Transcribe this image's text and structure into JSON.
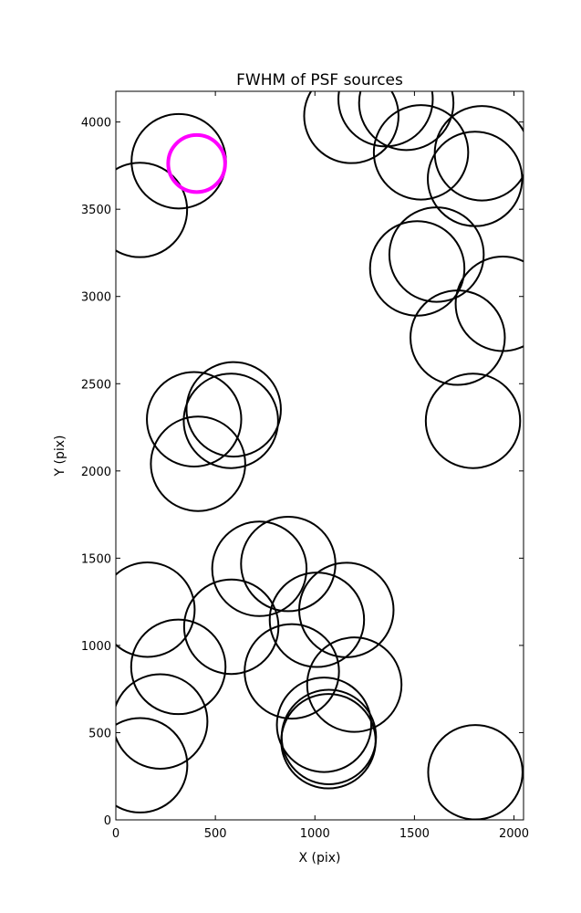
{
  "chart_data": {
    "type": "scatter",
    "title": "FWHM of PSF sources",
    "xlabel": "X (pix)",
    "ylabel": "Y (pix)",
    "xlim": [
      0,
      2048
    ],
    "ylim": [
      0,
      4176
    ],
    "xticks": [
      0,
      500,
      1000,
      1500,
      2000
    ],
    "yticks": [
      0,
      500,
      1000,
      1500,
      2000,
      2500,
      3000,
      3500,
      4000
    ],
    "xtick_labels": [
      "0",
      "500",
      "1000",
      "1500",
      "2000"
    ],
    "ytick_labels": [
      "0",
      "500",
      "1000",
      "1500",
      "2000",
      "2500",
      "3000",
      "3500",
      "4000"
    ],
    "grid": false,
    "marker": "open circle",
    "series": [
      {
        "color": "#000000",
        "points": [
          {
            "x": 122,
            "y": 313,
            "r": 237
          },
          {
            "x": 223,
            "y": 564,
            "r": 237
          },
          {
            "x": 314,
            "y": 877,
            "r": 237
          },
          {
            "x": 159,
            "y": 1205,
            "r": 237
          },
          {
            "x": 580,
            "y": 1107,
            "r": 237
          },
          {
            "x": 721,
            "y": 1439,
            "r": 237
          },
          {
            "x": 866,
            "y": 1467,
            "r": 237
          },
          {
            "x": 1010,
            "y": 1147,
            "r": 237
          },
          {
            "x": 1158,
            "y": 1203,
            "r": 237
          },
          {
            "x": 884,
            "y": 851,
            "r": 237
          },
          {
            "x": 1198,
            "y": 775,
            "r": 237
          },
          {
            "x": 1046,
            "y": 545,
            "r": 237
          },
          {
            "x": 1070,
            "y": 475,
            "r": 237
          },
          {
            "x": 1068,
            "y": 451,
            "r": 237
          },
          {
            "x": 1806,
            "y": 273,
            "r": 237
          },
          {
            "x": 413,
            "y": 2041,
            "r": 237
          },
          {
            "x": 393,
            "y": 2296,
            "r": 237
          },
          {
            "x": 578,
            "y": 2287,
            "r": 237
          },
          {
            "x": 592,
            "y": 2353,
            "r": 237
          },
          {
            "x": 1794,
            "y": 2287,
            "r": 237
          },
          {
            "x": 1717,
            "y": 2764,
            "r": 237
          },
          {
            "x": 1944,
            "y": 2958,
            "r": 237
          },
          {
            "x": 1514,
            "y": 3161,
            "r": 237
          },
          {
            "x": 1611,
            "y": 3240,
            "r": 237
          },
          {
            "x": 1804,
            "y": 3674,
            "r": 237
          },
          {
            "x": 1839,
            "y": 3821,
            "r": 237
          },
          {
            "x": 1533,
            "y": 3826,
            "r": 237
          },
          {
            "x": 1459,
            "y": 4110,
            "r": 237
          },
          {
            "x": 1355,
            "y": 4131,
            "r": 237
          },
          {
            "x": 1183,
            "y": 4035,
            "r": 237
          },
          {
            "x": 121,
            "y": 3496,
            "r": 237
          },
          {
            "x": 316,
            "y": 3775,
            "r": 237
          }
        ]
      },
      {
        "color": "#ff00ff",
        "points": [
          {
            "x": 406,
            "y": 3762,
            "r": 143
          }
        ]
      }
    ]
  }
}
